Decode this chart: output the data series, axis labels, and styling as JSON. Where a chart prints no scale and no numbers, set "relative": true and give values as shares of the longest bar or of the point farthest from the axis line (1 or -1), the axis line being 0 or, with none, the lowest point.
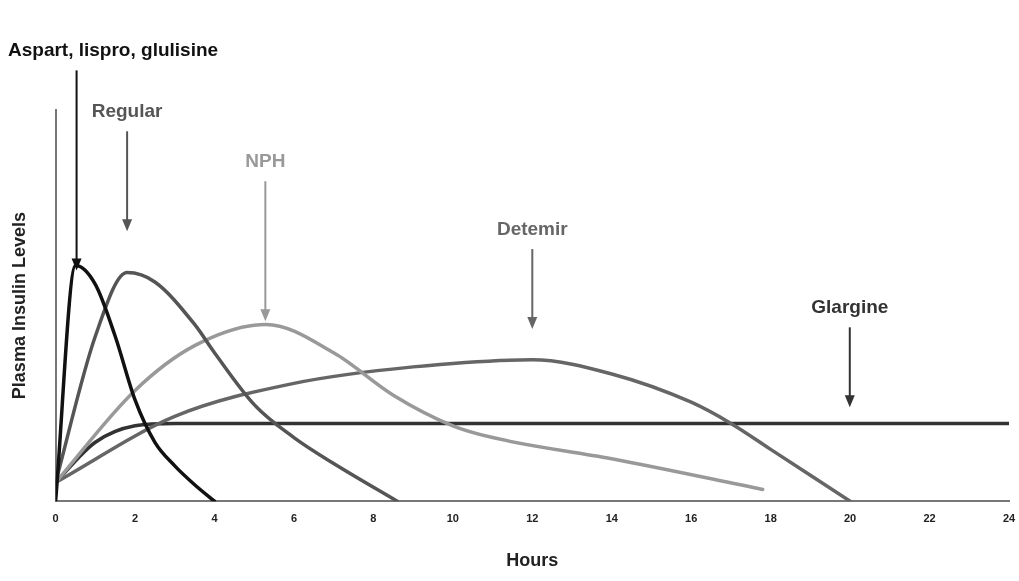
{
  "chart_data": {
    "type": "line",
    "relative": true,
    "xlabel": "Hours",
    "ylabel": "Plasma Insulin Levels",
    "xlim": [
      0,
      24
    ],
    "xticks": [
      0,
      2,
      4,
      6,
      8,
      10,
      12,
      14,
      16,
      18,
      20,
      22,
      24
    ],
    "grid": false,
    "legend": false,
    "marker": "none",
    "line_style": "solid",
    "series": [
      {
        "color": "#111111",
        "x": [
          0,
          0.5,
          1,
          1.5,
          2,
          2.5,
          3,
          3.5,
          4
        ],
        "values": [
          0,
          1,
          0.92,
          0.7,
          0.43,
          0.25,
          0.15,
          0.07,
          0
        ]
      },
      {
        "color": "#555555",
        "x": [
          0,
          1,
          1.8,
          2.5,
          3.5,
          4,
          5,
          6,
          7,
          8.6
        ],
        "values": [
          0.08,
          0.7,
          0.97,
          0.93,
          0.75,
          0.63,
          0.41,
          0.27,
          0.16,
          0
        ]
      },
      {
        "color": "#999999",
        "x": [
          0,
          2,
          3.5,
          5.3,
          7,
          8.5,
          10,
          11,
          14,
          17.8
        ],
        "values": [
          0.08,
          0.47,
          0.66,
          0.75,
          0.63,
          0.45,
          0.32,
          0.27,
          0.18,
          0.05
        ]
      },
      {
        "color": "#666666",
        "x": [
          0,
          3,
          6,
          9,
          12,
          14,
          16,
          17,
          18,
          20
        ],
        "values": [
          0.08,
          0.36,
          0.5,
          0.57,
          0.6,
          0.54,
          0.42,
          0.33,
          0.22,
          0
        ]
      },
      {
        "color": "#333333",
        "x": [
          0,
          1,
          2,
          3,
          24
        ],
        "values": [
          0.08,
          0.25,
          0.32,
          0.33,
          0.33
        ]
      }
    ],
    "annotations": [
      "Aspart, lispro, glulisine",
      "Regular",
      "NPH",
      "Detemir",
      "Glargine"
    ]
  }
}
